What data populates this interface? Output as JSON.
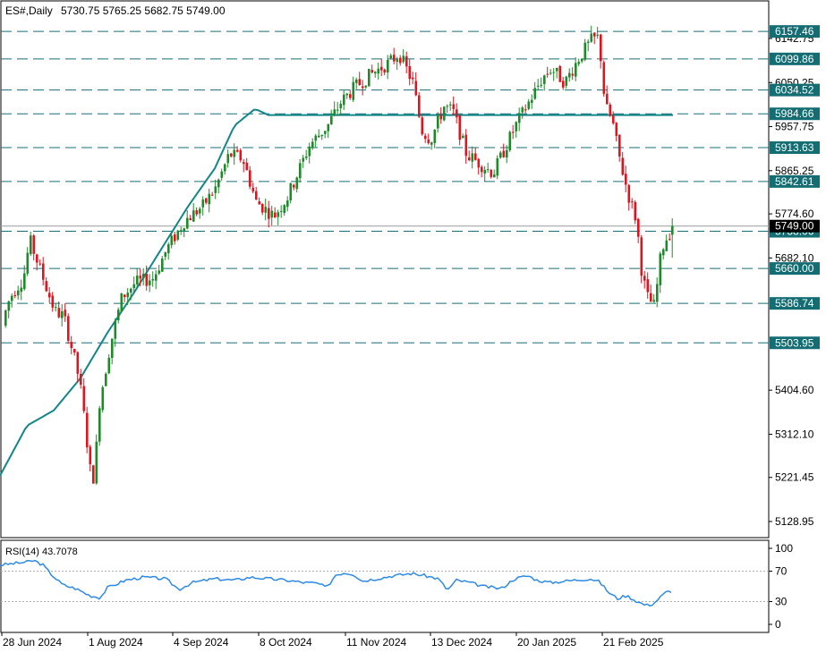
{
  "header": {
    "symbol": "ES#,Daily",
    "ohlc": "5730.75 5765.25 5682.75 5749.00"
  },
  "rsi_label": "RSI(14) 43.7078",
  "colors": {
    "up": "#1e8a2a",
    "down": "#e0141e",
    "ma": "#12868a",
    "level_line": "#1a6d77",
    "level_label_bg": "#136d72",
    "current_price_bg": "#000000",
    "rsi_line": "#2c8ae6"
  },
  "chart_data": [
    {
      "type": "candlestick",
      "title": "ES#,Daily",
      "ylim": [
        5080,
        6190
      ],
      "y_ticks": [
        "6142.75",
        "6050.25",
        "5957.75",
        "5865.25",
        "5774.60",
        "5682.10",
        "5404.60",
        "5312.10",
        "5221.45",
        "5128.95"
      ],
      "x_ticks": [
        "28 Jun 2024",
        "1 Aug 2024",
        "4 Sep 2024",
        "8 Oct 2024",
        "11 Nov 2024",
        "13 Dec 2024",
        "20 Jan 2025",
        "21 Feb 2025"
      ],
      "level_labels": [
        "6157.46",
        "6099.86",
        "6034.52",
        "5984.66",
        "5913.63",
        "5842.61",
        "5738.06",
        "5660.00",
        "5586.74",
        "5503.95"
      ],
      "current_price": "5749.00",
      "last_ohlc": {
        "open": 5730.75,
        "high": 5765.25,
        "low": 5682.75,
        "close": 5749.0
      },
      "series": [
        {
          "name": "MA",
          "type": "line",
          "anchors": [
            [
              0,
              5225
            ],
            [
              30,
              5330
            ],
            [
              60,
              5362
            ],
            [
              90,
              5430
            ],
            [
              120,
              5525
            ],
            [
              150,
              5610
            ],
            [
              180,
              5700
            ],
            [
              210,
              5790
            ],
            [
              240,
              5870
            ],
            [
              262,
              5960
            ],
            [
              285,
              5995
            ],
            [
              300,
              5982
            ]
          ]
        }
      ],
      "price_path": [
        [
          0,
          5540
        ],
        [
          10,
          5600
        ],
        [
          25,
          5640
        ],
        [
          32,
          5720
        ],
        [
          45,
          5650
        ],
        [
          60,
          5570
        ],
        [
          70,
          5560
        ],
        [
          82,
          5470
        ],
        [
          88,
          5420
        ],
        [
          92,
          5360
        ],
        [
          100,
          5230
        ],
        [
          104,
          5220
        ],
        [
          110,
          5380
        ],
        [
          122,
          5500
        ],
        [
          135,
          5600
        ],
        [
          150,
          5630
        ],
        [
          170,
          5640
        ],
        [
          185,
          5700
        ],
        [
          205,
          5760
        ],
        [
          225,
          5790
        ],
        [
          240,
          5830
        ],
        [
          255,
          5900
        ],
        [
          270,
          5890
        ],
        [
          285,
          5800
        ],
        [
          305,
          5770
        ],
        [
          320,
          5810
        ],
        [
          345,
          5920
        ],
        [
          365,
          5960
        ],
        [
          380,
          6010
        ],
        [
          395,
          6040
        ],
        [
          415,
          6070
        ],
        [
          432,
          6090
        ],
        [
          445,
          6110
        ],
        [
          460,
          6050
        ],
        [
          470,
          5950
        ],
        [
          480,
          5930
        ],
        [
          495,
          6000
        ],
        [
          505,
          5990
        ],
        [
          520,
          5900
        ],
        [
          535,
          5880
        ],
        [
          550,
          5860
        ],
        [
          560,
          5900
        ],
        [
          575,
          5960
        ],
        [
          590,
          6010
        ],
        [
          605,
          6060
        ],
        [
          615,
          6080
        ],
        [
          630,
          6050
        ],
        [
          645,
          6100
        ],
        [
          660,
          6140
        ],
        [
          668,
          6145
        ],
        [
          675,
          6000
        ],
        [
          683,
          5970
        ],
        [
          690,
          5900
        ],
        [
          700,
          5820
        ],
        [
          710,
          5760
        ],
        [
          716,
          5650
        ],
        [
          722,
          5600
        ],
        [
          730,
          5580
        ],
        [
          738,
          5700
        ],
        [
          745,
          5730
        ],
        [
          752,
          5749
        ]
      ]
    },
    {
      "type": "line",
      "title": "RSI(14) 43.7078",
      "ylim": [
        0,
        100
      ],
      "y_ticks": [
        "100",
        "70",
        "30",
        "0"
      ],
      "levels": [
        70,
        30
      ],
      "points": [
        [
          0,
          78
        ],
        [
          15,
          80
        ],
        [
          30,
          82
        ],
        [
          38,
          84
        ],
        [
          48,
          78
        ],
        [
          58,
          65
        ],
        [
          70,
          52
        ],
        [
          85,
          47
        ],
        [
          100,
          38
        ],
        [
          112,
          35
        ],
        [
          120,
          48
        ],
        [
          140,
          58
        ],
        [
          160,
          62
        ],
        [
          185,
          60
        ],
        [
          200,
          46
        ],
        [
          215,
          55
        ],
        [
          240,
          60
        ],
        [
          262,
          58
        ],
        [
          280,
          62
        ],
        [
          300,
          60
        ],
        [
          320,
          58
        ],
        [
          340,
          55
        ],
        [
          355,
          54
        ],
        [
          365,
          48
        ],
        [
          375,
          65
        ],
        [
          385,
          68
        ],
        [
          395,
          66
        ],
        [
          405,
          57
        ],
        [
          420,
          60
        ],
        [
          440,
          64
        ],
        [
          460,
          67
        ],
        [
          475,
          64
        ],
        [
          490,
          60
        ],
        [
          500,
          45
        ],
        [
          510,
          58
        ],
        [
          525,
          55
        ],
        [
          540,
          50
        ],
        [
          560,
          47
        ],
        [
          575,
          60
        ],
        [
          590,
          64
        ],
        [
          600,
          58
        ],
        [
          615,
          55
        ],
        [
          640,
          58
        ],
        [
          660,
          60
        ],
        [
          670,
          56
        ],
        [
          680,
          42
        ],
        [
          690,
          34
        ],
        [
          700,
          38
        ],
        [
          712,
          30
        ],
        [
          722,
          25
        ],
        [
          730,
          27
        ],
        [
          738,
          36
        ],
        [
          745,
          43
        ],
        [
          752,
          44
        ]
      ]
    }
  ]
}
